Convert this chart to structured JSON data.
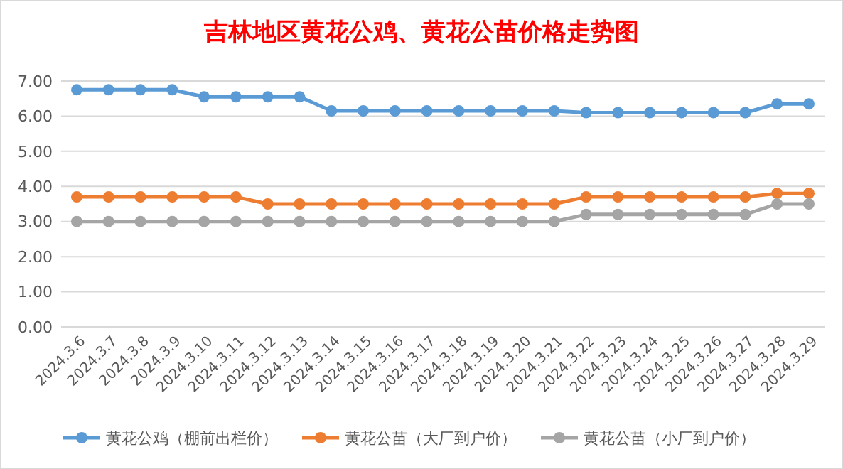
{
  "chart_data": {
    "type": "line",
    "title": "吉林地区黄花公鸡、黄花公苗价格走势图",
    "categories": [
      "2024.3.6",
      "2024.3.7",
      "2024.3.8",
      "2024.3.9",
      "2024.3.10",
      "2024.3.11",
      "2024.3.12",
      "2024.3.13",
      "2024.3.14",
      "2024.3.15",
      "2024.3.16",
      "2024.3.17",
      "2024.3.18",
      "2024.3.19",
      "2024.3.20",
      "2024.3.21",
      "2024.3.22",
      "2024.3.23",
      "2024.3.24",
      "2024.3.25",
      "2024.3.26",
      "2024.3.27",
      "2024.3.28",
      "2024.3.29"
    ],
    "series": [
      {
        "name": "黄花公鸡（棚前出栏价）",
        "color": "#5b9bd5",
        "values": [
          6.75,
          6.75,
          6.75,
          6.75,
          6.55,
          6.55,
          6.55,
          6.55,
          6.15,
          6.15,
          6.15,
          6.15,
          6.15,
          6.15,
          6.15,
          6.15,
          6.1,
          6.1,
          6.1,
          6.1,
          6.1,
          6.1,
          6.35,
          6.35
        ]
      },
      {
        "name": "黄花公苗（大厂到户价）",
        "color": "#ed7d31",
        "values": [
          3.7,
          3.7,
          3.7,
          3.7,
          3.7,
          3.7,
          3.5,
          3.5,
          3.5,
          3.5,
          3.5,
          3.5,
          3.5,
          3.5,
          3.5,
          3.5,
          3.7,
          3.7,
          3.7,
          3.7,
          3.7,
          3.7,
          3.8,
          3.8
        ]
      },
      {
        "name": "黄花公苗（小厂到户价）",
        "color": "#a5a5a5",
        "values": [
          3,
          3,
          3,
          3,
          3,
          3,
          3,
          3,
          3,
          3,
          3,
          3,
          3,
          3,
          3,
          3,
          3.2,
          3.2,
          3.2,
          3.2,
          3.2,
          3.2,
          3.5,
          3.5
        ]
      }
    ],
    "ylim": [
      0,
      7
    ],
    "yticks": [
      {
        "value": 0,
        "label": "0.00"
      },
      {
        "value": 1,
        "label": "1.00"
      },
      {
        "value": 2,
        "label": "2.00"
      },
      {
        "value": 3,
        "label": "3.00"
      },
      {
        "value": 4,
        "label": "4.00"
      },
      {
        "value": 5,
        "label": "5.00"
      },
      {
        "value": 6,
        "label": "6.00"
      },
      {
        "value": 7,
        "label": "7.00"
      }
    ],
    "grid": "y",
    "legend": "bottom",
    "marker": "circle",
    "line_style": "solid"
  }
}
